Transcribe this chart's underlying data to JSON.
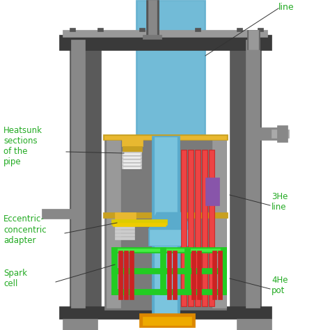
{
  "background_color": "#ffffff",
  "title": "",
  "labels": {
    "heatsunk": "Heatsunk\nsections\nof the\npipe",
    "eccentric": "Eccentric-\nconcentric\nadapter",
    "spark_cell": "Spark\ncell",
    "he3_line": "3He\nline",
    "he4_pot": "4He\npot",
    "line_top": "line"
  },
  "colors": {
    "outer_shell": "#5a5a5a",
    "outer_shell_light": "#888888",
    "outer_shell_dark": "#3a3a3a",
    "inner_shell": "#7a7a7a",
    "blue_main": "#5aabcc",
    "blue_light": "#7ac4de",
    "gold_ring": "#c8a020",
    "gold_bright": "#e8b830",
    "coil": "#aaaaaa",
    "red_rods": "#cc2222",
    "green_struct": "#22cc22",
    "green_bright": "#44ee44",
    "yellow_detail": "#ddcc00",
    "purple_detail": "#8855aa",
    "orange_base": "#dd8800",
    "flange_gray": "#999999",
    "side_port": "#888888",
    "annotation": "#22aa22",
    "line_color": "#333333"
  },
  "figsize": [
    4.74,
    4.74
  ],
  "dpi": 100
}
